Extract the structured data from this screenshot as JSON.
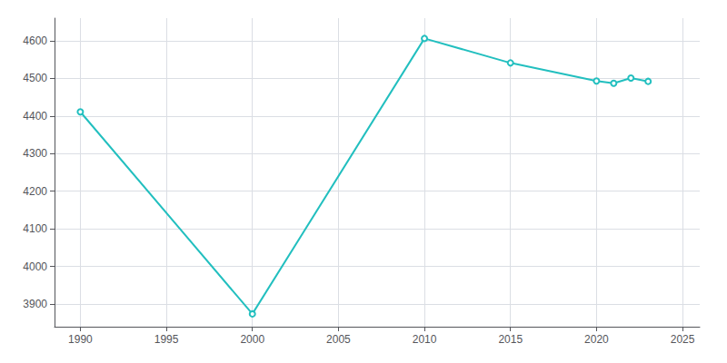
{
  "chart_data": {
    "type": "line",
    "x": [
      1990,
      2000,
      2010,
      2015,
      2020,
      2021,
      2022,
      2023
    ],
    "values": [
      4411,
      3874,
      4606,
      4541,
      4493,
      4487,
      4501,
      4492
    ],
    "color": "#22BFBF",
    "xlim": [
      1988.5,
      2026
    ],
    "ylim": [
      3840,
      4660
    ],
    "xticks": [
      1990,
      1995,
      2000,
      2005,
      2010,
      2015,
      2020,
      2025
    ],
    "yticks": [
      3900,
      4000,
      4100,
      4200,
      4300,
      4400,
      4500,
      4600
    ],
    "grid": true
  }
}
